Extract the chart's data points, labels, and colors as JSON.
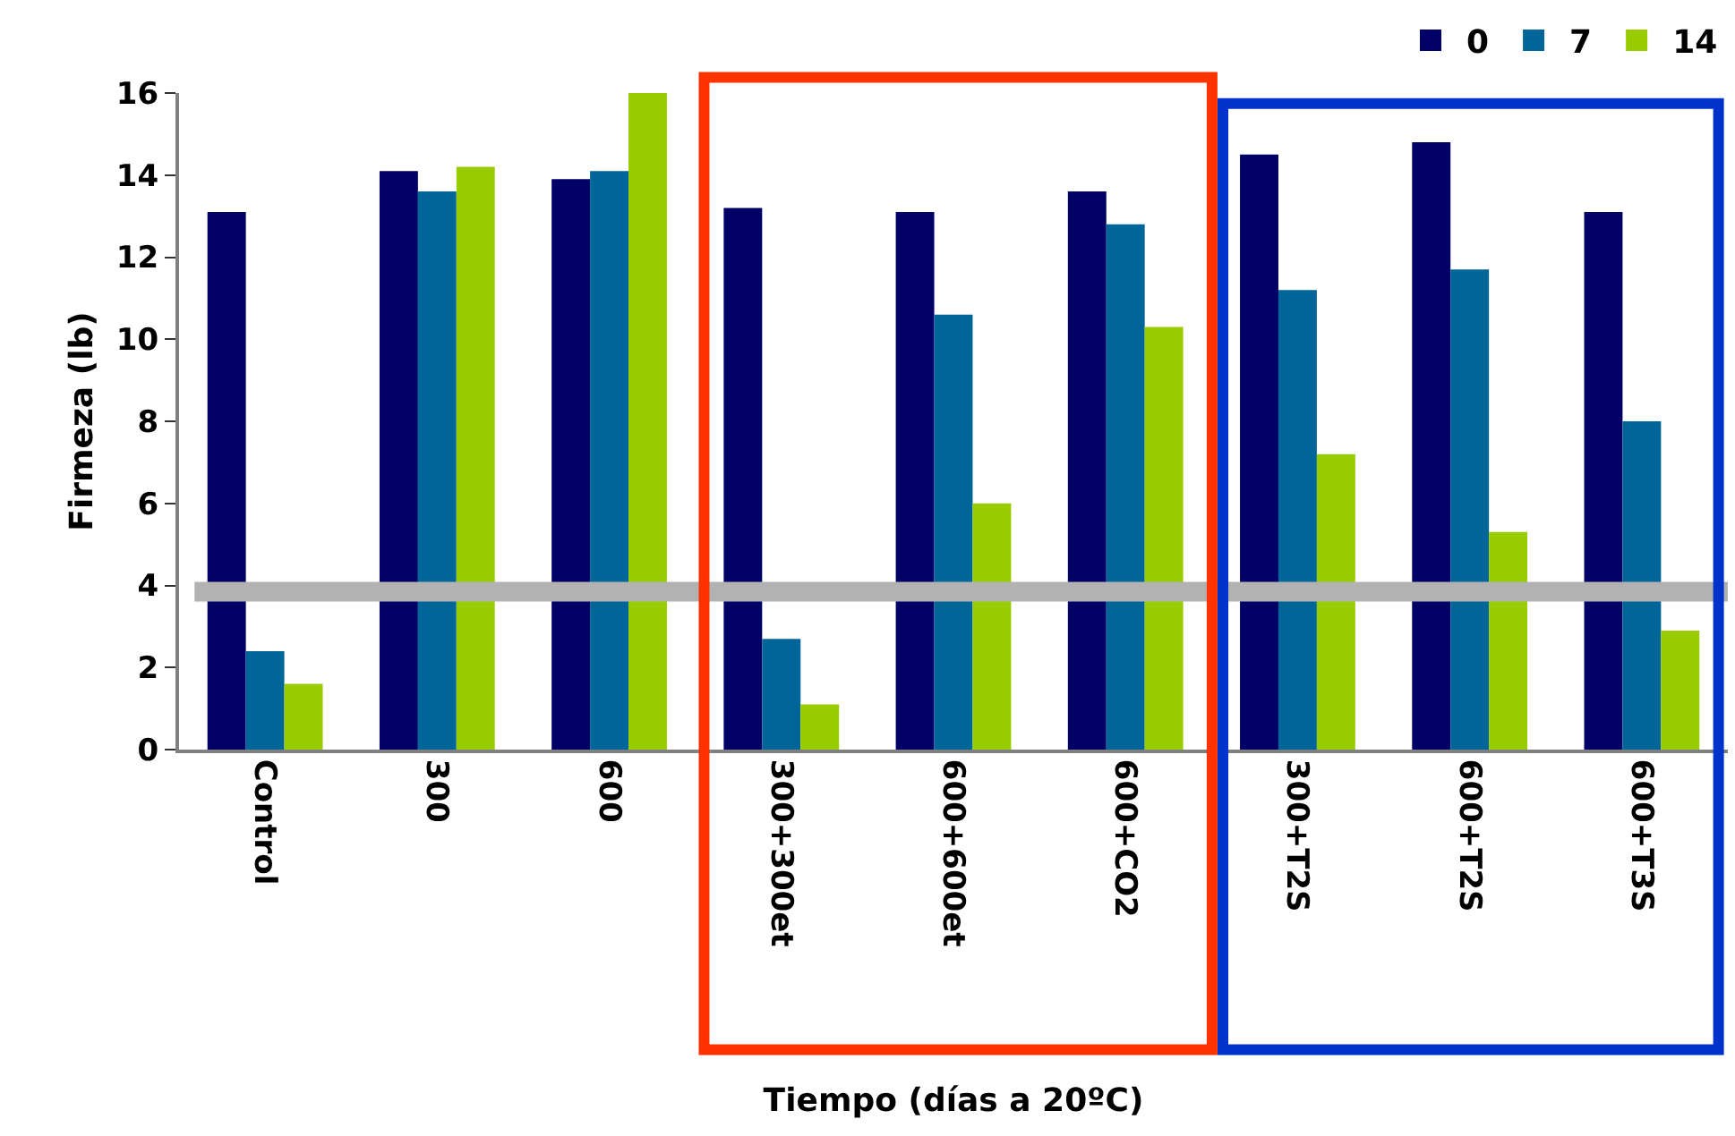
{
  "chart_data": {
    "type": "bar",
    "xlabel": "Tiempo (días a 20ºC)",
    "ylabel": "Firmeza (lb)",
    "categories": [
      "Control",
      "300",
      "600",
      "300+300et",
      "600+600et",
      "600+CO2",
      "300+T2S",
      "600+T2S",
      "600+T3S"
    ],
    "series": [
      {
        "name": "0",
        "color": "#000066",
        "values": [
          13.1,
          14.1,
          13.9,
          13.2,
          13.1,
          13.6,
          14.5,
          14.8,
          13.1
        ]
      },
      {
        "name": "7",
        "color": "#006699",
        "values": [
          2.4,
          13.6,
          14.1,
          2.7,
          10.6,
          12.8,
          11.2,
          11.7,
          8.0
        ]
      },
      {
        "name": "14",
        "color": "#99cc00",
        "values": [
          1.6,
          14.2,
          16.0,
          1.1,
          6.0,
          10.3,
          7.2,
          5.3,
          2.9
        ]
      }
    ],
    "ylim": [
      0,
      16
    ],
    "yticks": [
      0,
      2,
      4,
      6,
      8,
      10,
      12,
      14,
      16
    ],
    "ref_lines": [
      {
        "axis": "y",
        "value": 3.85,
        "color": "#b2b2b2"
      }
    ],
    "legend": "top right"
  }
}
